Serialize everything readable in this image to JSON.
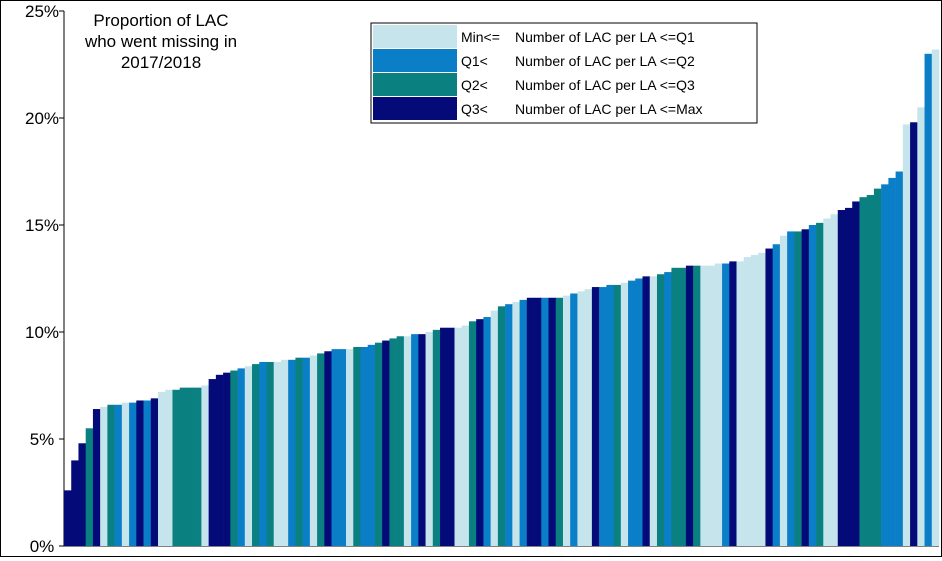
{
  "chart_data": {
    "type": "bar",
    "title_lines": [
      "Proportion of LAC",
      "who went missing in",
      "2017/2018"
    ],
    "xlabel": "",
    "ylabel": "",
    "ylim": [
      0,
      25
    ],
    "yticks": [
      "0%",
      "5%",
      "10%",
      "15%",
      "20%",
      "25%"
    ],
    "ytick_values": [
      0,
      5,
      10,
      15,
      20,
      25
    ],
    "grid": false,
    "legend_position": "top-center",
    "legend": [
      {
        "prefix": "Min<=",
        "text": "Number of LAC per LA <=Q1",
        "color": "#c5e4ec"
      },
      {
        "prefix": "Q1<",
        "text": "Number of LAC per LA <=Q2",
        "color": "#0a7fc7"
      },
      {
        "prefix": "Q2<",
        "text": "Number of LAC per LA <=Q3",
        "color": "#0a8080"
      },
      {
        "prefix": "Q3<",
        "text": "Number of LAC per LA <=Max",
        "color": "#040a78"
      }
    ],
    "series_colors": {
      "1": "#c5e4ec",
      "2": "#0a7fc7",
      "3": "#0a8080",
      "4": "#040a78"
    },
    "bars": [
      {
        "v": 2.6,
        "q": 4
      },
      {
        "v": 4.0,
        "q": 4
      },
      {
        "v": 4.8,
        "q": 4
      },
      {
        "v": 5.5,
        "q": 3
      },
      {
        "v": 6.4,
        "q": 4
      },
      {
        "v": 6.5,
        "q": 1
      },
      {
        "v": 6.6,
        "q": 3
      },
      {
        "v": 6.6,
        "q": 2
      },
      {
        "v": 6.7,
        "q": 1
      },
      {
        "v": 6.7,
        "q": 2
      },
      {
        "v": 6.8,
        "q": 4
      },
      {
        "v": 6.8,
        "q": 2
      },
      {
        "v": 6.9,
        "q": 4
      },
      {
        "v": 7.2,
        "q": 1
      },
      {
        "v": 7.3,
        "q": 1
      },
      {
        "v": 7.3,
        "q": 3
      },
      {
        "v": 7.4,
        "q": 3
      },
      {
        "v": 7.4,
        "q": 3
      },
      {
        "v": 7.4,
        "q": 3
      },
      {
        "v": 7.5,
        "q": 1
      },
      {
        "v": 7.8,
        "q": 4
      },
      {
        "v": 8.0,
        "q": 4
      },
      {
        "v": 8.1,
        "q": 4
      },
      {
        "v": 8.2,
        "q": 3
      },
      {
        "v": 8.3,
        "q": 2
      },
      {
        "v": 8.4,
        "q": 1
      },
      {
        "v": 8.5,
        "q": 3
      },
      {
        "v": 8.6,
        "q": 2
      },
      {
        "v": 8.6,
        "q": 3
      },
      {
        "v": 8.6,
        "q": 1
      },
      {
        "v": 8.7,
        "q": 1
      },
      {
        "v": 8.7,
        "q": 2
      },
      {
        "v": 8.8,
        "q": 3
      },
      {
        "v": 8.8,
        "q": 2
      },
      {
        "v": 8.9,
        "q": 1
      },
      {
        "v": 9.0,
        "q": 3
      },
      {
        "v": 9.1,
        "q": 4
      },
      {
        "v": 9.2,
        "q": 2
      },
      {
        "v": 9.2,
        "q": 2
      },
      {
        "v": 9.2,
        "q": 1
      },
      {
        "v": 9.3,
        "q": 3
      },
      {
        "v": 9.3,
        "q": 2
      },
      {
        "v": 9.4,
        "q": 2
      },
      {
        "v": 9.5,
        "q": 3
      },
      {
        "v": 9.6,
        "q": 4
      },
      {
        "v": 9.7,
        "q": 3
      },
      {
        "v": 9.8,
        "q": 3
      },
      {
        "v": 9.8,
        "q": 1
      },
      {
        "v": 9.9,
        "q": 2
      },
      {
        "v": 9.9,
        "q": 4
      },
      {
        "v": 10.0,
        "q": 1
      },
      {
        "v": 10.1,
        "q": 3
      },
      {
        "v": 10.2,
        "q": 4
      },
      {
        "v": 10.2,
        "q": 4
      },
      {
        "v": 10.2,
        "q": 1
      },
      {
        "v": 10.3,
        "q": 1
      },
      {
        "v": 10.5,
        "q": 3
      },
      {
        "v": 10.6,
        "q": 4
      },
      {
        "v": 10.7,
        "q": 2
      },
      {
        "v": 11.0,
        "q": 1
      },
      {
        "v": 11.2,
        "q": 3
      },
      {
        "v": 11.3,
        "q": 2
      },
      {
        "v": 11.4,
        "q": 1
      },
      {
        "v": 11.5,
        "q": 2
      },
      {
        "v": 11.6,
        "q": 4
      },
      {
        "v": 11.6,
        "q": 4
      },
      {
        "v": 11.6,
        "q": 2
      },
      {
        "v": 11.6,
        "q": 4
      },
      {
        "v": 11.6,
        "q": 3
      },
      {
        "v": 11.7,
        "q": 1
      },
      {
        "v": 11.8,
        "q": 2
      },
      {
        "v": 11.9,
        "q": 1
      },
      {
        "v": 12.0,
        "q": 1
      },
      {
        "v": 12.1,
        "q": 4
      },
      {
        "v": 12.1,
        "q": 2
      },
      {
        "v": 12.2,
        "q": 2
      },
      {
        "v": 12.2,
        "q": 3
      },
      {
        "v": 12.3,
        "q": 1
      },
      {
        "v": 12.4,
        "q": 2
      },
      {
        "v": 12.5,
        "q": 2
      },
      {
        "v": 12.6,
        "q": 4
      },
      {
        "v": 12.6,
        "q": 1
      },
      {
        "v": 12.7,
        "q": 3
      },
      {
        "v": 12.8,
        "q": 2
      },
      {
        "v": 13.0,
        "q": 3
      },
      {
        "v": 13.0,
        "q": 3
      },
      {
        "v": 13.1,
        "q": 4
      },
      {
        "v": 13.1,
        "q": 3
      },
      {
        "v": 13.1,
        "q": 1
      },
      {
        "v": 13.1,
        "q": 1
      },
      {
        "v": 13.2,
        "q": 1
      },
      {
        "v": 13.2,
        "q": 2
      },
      {
        "v": 13.3,
        "q": 4
      },
      {
        "v": 13.3,
        "q": 1
      },
      {
        "v": 13.5,
        "q": 1
      },
      {
        "v": 13.6,
        "q": 1
      },
      {
        "v": 13.7,
        "q": 1
      },
      {
        "v": 13.9,
        "q": 4
      },
      {
        "v": 14.1,
        "q": 2
      },
      {
        "v": 14.5,
        "q": 1
      },
      {
        "v": 14.7,
        "q": 2
      },
      {
        "v": 14.7,
        "q": 3
      },
      {
        "v": 14.8,
        "q": 4
      },
      {
        "v": 15.0,
        "q": 2
      },
      {
        "v": 15.1,
        "q": 3
      },
      {
        "v": 15.3,
        "q": 1
      },
      {
        "v": 15.5,
        "q": 1
      },
      {
        "v": 15.7,
        "q": 4
      },
      {
        "v": 15.8,
        "q": 4
      },
      {
        "v": 16.1,
        "q": 4
      },
      {
        "v": 16.3,
        "q": 3
      },
      {
        "v": 16.4,
        "q": 3
      },
      {
        "v": 16.7,
        "q": 3
      },
      {
        "v": 16.9,
        "q": 2
      },
      {
        "v": 17.2,
        "q": 2
      },
      {
        "v": 17.5,
        "q": 2
      },
      {
        "v": 19.7,
        "q": 1
      },
      {
        "v": 19.8,
        "q": 4
      },
      {
        "v": 20.5,
        "q": 1
      },
      {
        "v": 23.0,
        "q": 2
      },
      {
        "v": 23.2,
        "q": 1
      }
    ]
  }
}
